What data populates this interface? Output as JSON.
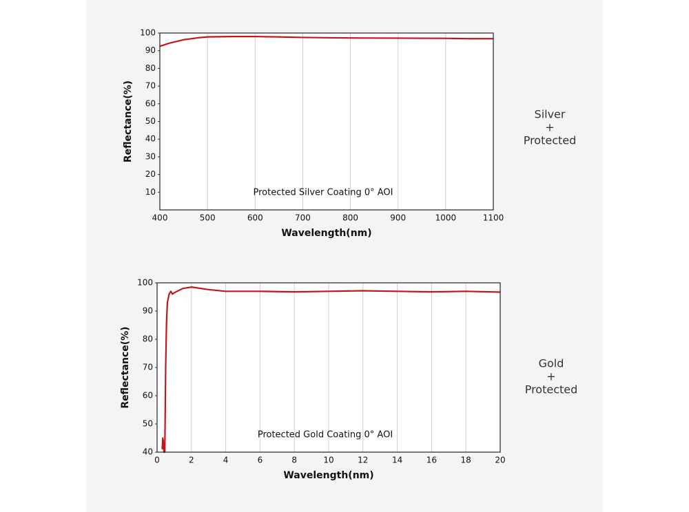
{
  "chart_data": [
    {
      "type": "line",
      "annotation": "Protected Silver Coating  0°  AOI",
      "xlabel": "Wavelength(nm)",
      "ylabel": "Reflectance(%)",
      "side_label": [
        "Silver",
        "+",
        "Protected"
      ],
      "x": [
        400,
        420,
        450,
        480,
        500,
        550,
        600,
        650,
        700,
        800,
        900,
        1000,
        1050,
        1100
      ],
      "series": [
        {
          "name": "Protected Silver Coating",
          "color": "#c0171c",
          "values": [
            92.5,
            94.3,
            96.2,
            97.3,
            97.8,
            98,
            98,
            97.8,
            97.5,
            97.2,
            97.1,
            97,
            96.8,
            96.8
          ]
        }
      ],
      "xlim": [
        400,
        1100
      ],
      "xticks": [
        400,
        500,
        600,
        700,
        800,
        900,
        1000,
        1100
      ],
      "ylim": [
        0,
        100
      ],
      "yticks": [
        10,
        20,
        30,
        40,
        50,
        60,
        70,
        80,
        90,
        100
      ],
      "grid": true
    },
    {
      "type": "line",
      "annotation": "Protected Gold Coating  0°  AOI",
      "xlabel": "Wavelength(nm)",
      "ylabel": "Reflectance(%)",
      "side_label": [
        "Gold",
        "+",
        "Protected"
      ],
      "x": [
        0.3,
        0.33,
        0.36,
        0.4,
        0.45,
        0.5,
        0.55,
        0.6,
        0.7,
        0.8,
        0.9,
        1.0,
        1.5,
        2,
        3,
        4,
        6,
        8,
        10,
        12,
        14,
        16,
        18,
        20
      ],
      "series": [
        {
          "name": "Protected Gold Coating",
          "color": "#c0171c",
          "values": [
            41,
            45,
            44,
            40,
            40,
            70,
            86,
            93,
            96,
            97,
            96,
            96.5,
            98,
            98.5,
            97.6,
            97,
            97,
            96.8,
            97,
            97.2,
            97,
            96.8,
            97,
            96.7
          ]
        }
      ],
      "xlim": [
        0,
        20
      ],
      "xticks": [
        0,
        2,
        4,
        6,
        8,
        10,
        12,
        14,
        16,
        18,
        20
      ],
      "ylim": [
        40,
        100
      ],
      "yticks": [
        40,
        50,
        60,
        70,
        80,
        90,
        100
      ],
      "grid": true
    }
  ]
}
